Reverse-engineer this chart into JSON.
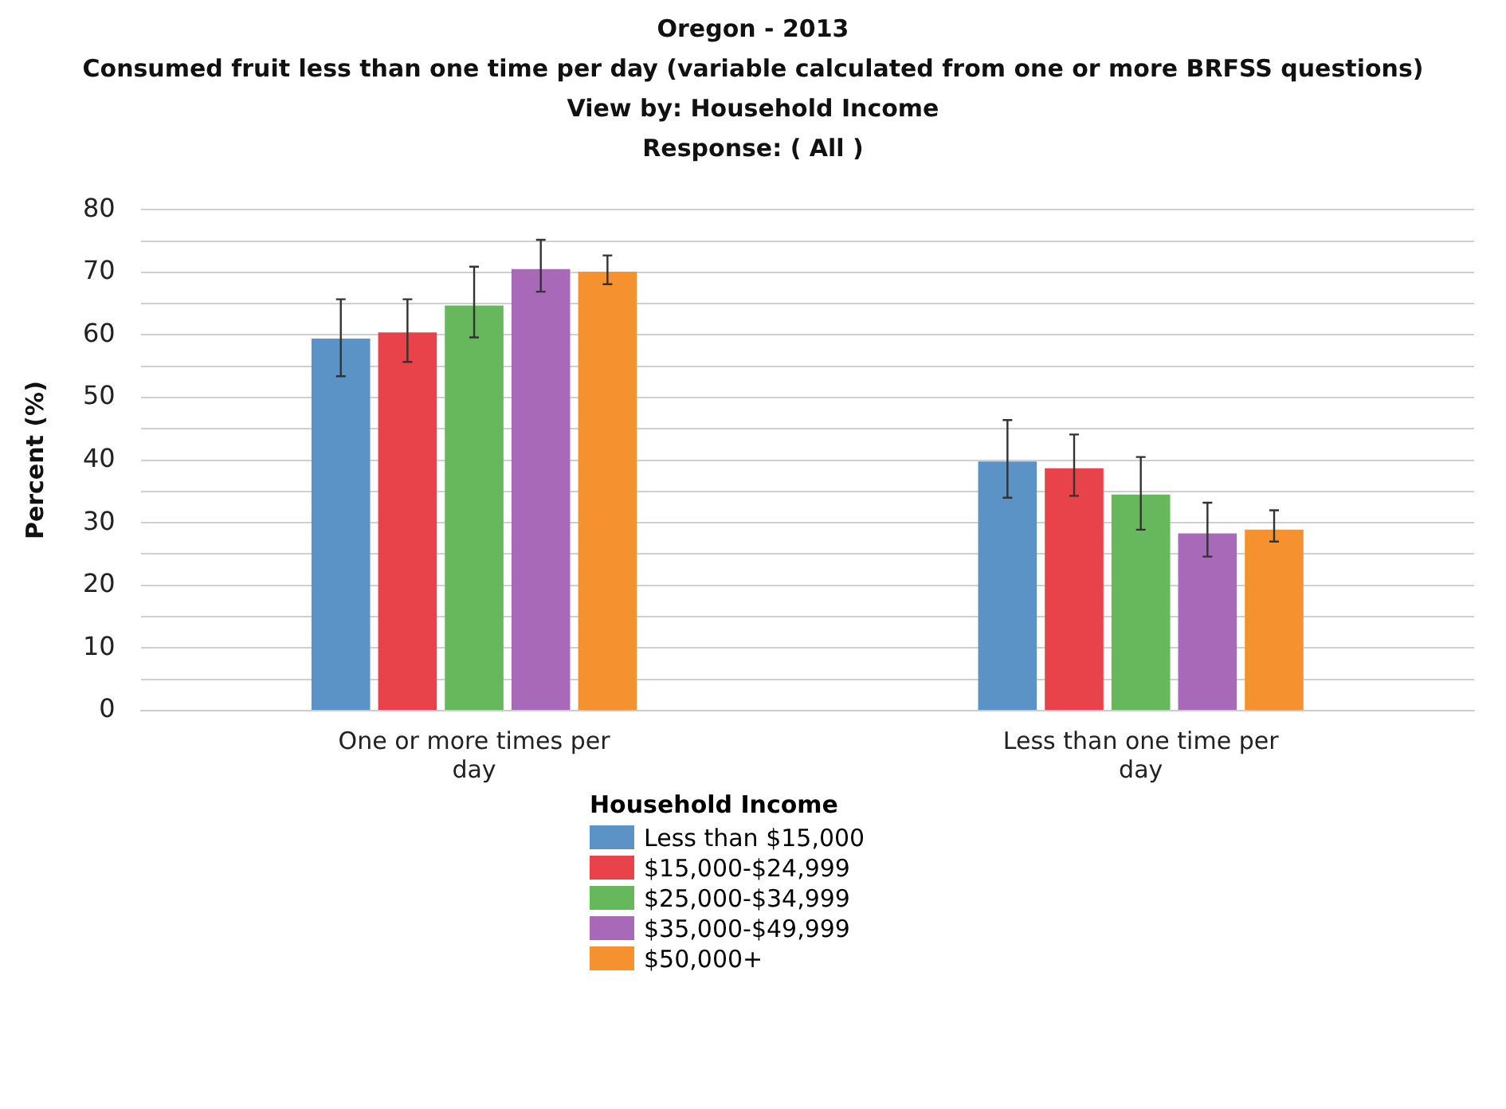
{
  "chart_data": {
    "type": "bar",
    "title": "Oregon - 2013",
    "subtitle": "Consumed fruit less than one time per day (variable calculated from one or more BRFSS questions)",
    "annotations": [
      "View by: Household Income",
      "Response: ( All )"
    ],
    "ylabel": "Percent (%)",
    "legend_title": "Household Income",
    "legend": "bottom",
    "grid": "y",
    "categories": [
      "One or more times per day",
      "Less than one time per day"
    ],
    "ylim": [
      0,
      80
    ],
    "yticks": [
      0,
      {
        "value": 5,
        "label": null
      },
      10,
      {
        "value": 15,
        "label": null
      },
      20,
      {
        "value": 25,
        "label": null
      },
      30,
      {
        "value": 35,
        "label": null
      },
      40,
      {
        "value": 45,
        "label": null
      },
      50,
      {
        "value": 55,
        "label": null
      },
      60,
      {
        "value": 65,
        "label": null
      },
      70,
      {
        "value": 75,
        "label": null
      },
      80
    ],
    "series": [
      {
        "name": "Less than $15,000",
        "color": "#5b93c7",
        "values": [
          59.4,
          39.8
        ],
        "errors": [
          [
            53.4,
            65.7
          ],
          [
            34.0,
            46.4
          ]
        ]
      },
      {
        "name": "$15,000-$24,999",
        "color": "#e8434a",
        "values": [
          60.4,
          38.7
        ],
        "errors": [
          [
            55.7,
            65.7
          ],
          [
            34.3,
            44.1
          ]
        ]
      },
      {
        "name": "$25,000-$34,999",
        "color": "#67b85c",
        "values": [
          64.7,
          34.5
        ],
        "errors": [
          [
            59.6,
            70.9
          ],
          [
            28.9,
            40.5
          ]
        ]
      },
      {
        "name": "$35,000-$49,999",
        "color": "#a86ab8",
        "values": [
          70.5,
          28.3
        ],
        "errors": [
          [
            66.9,
            75.2
          ],
          [
            24.6,
            33.2
          ]
        ]
      },
      {
        "name": "$50,000+",
        "color": "#f5922f",
        "values": [
          70.1,
          28.9
        ],
        "errors": [
          [
            68.1,
            72.7
          ],
          [
            27.0,
            32.0
          ]
        ]
      }
    ]
  }
}
